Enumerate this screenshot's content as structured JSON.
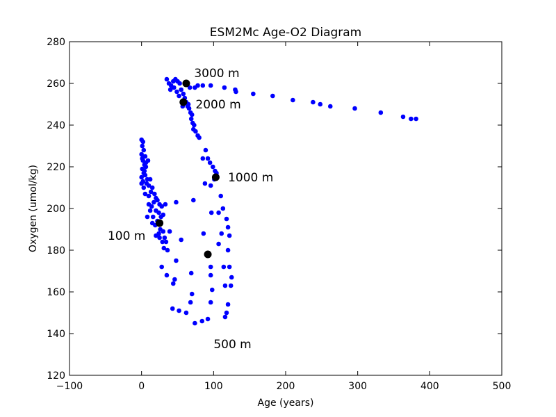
{
  "chart_data": {
    "type": "scatter",
    "title": "ESM2Mc Age-O2 Diagram",
    "xlabel": "Age (years)",
    "ylabel": "Oxygen (umol/kg)",
    "xlim": [
      -100,
      500
    ],
    "ylim": [
      120,
      280
    ],
    "xticks": [
      "−100",
      "0",
      "100",
      "200",
      "300",
      "400",
      "500"
    ],
    "yticks": [
      "120",
      "140",
      "160",
      "180",
      "200",
      "220",
      "240",
      "260",
      "280"
    ],
    "grid": false,
    "colors": {
      "points": "#0000ff",
      "markers": "#000000"
    },
    "series": [
      {
        "values": [
          [
            0,
            233
          ],
          [
            2,
            232
          ],
          [
            1,
            230
          ],
          [
            3,
            228
          ],
          [
            0,
            226
          ],
          [
            5,
            225
          ],
          [
            2,
            223
          ],
          [
            4,
            221
          ],
          [
            1,
            219
          ],
          [
            6,
            220
          ],
          [
            3,
            217
          ],
          [
            0,
            215
          ],
          [
            5,
            216
          ],
          [
            8,
            214
          ],
          [
            2,
            213
          ],
          [
            0,
            212
          ],
          [
            7,
            212
          ],
          [
            10,
            211
          ],
          [
            3,
            210
          ],
          [
            12,
            214
          ],
          [
            6,
            222
          ],
          [
            9,
            223
          ],
          [
            4,
            218
          ],
          [
            1,
            224
          ],
          [
            15,
            210
          ],
          [
            13,
            208
          ],
          [
            18,
            207
          ],
          [
            20,
            205
          ],
          [
            22,
            204
          ],
          [
            17,
            203
          ],
          [
            14,
            201
          ],
          [
            10,
            202
          ],
          [
            25,
            202
          ],
          [
            28,
            201
          ],
          [
            20,
            199
          ],
          [
            24,
            198
          ],
          [
            16,
            196
          ],
          [
            12,
            199
          ],
          [
            8,
            196
          ],
          [
            30,
            197
          ],
          [
            33,
            202
          ],
          [
            27,
            196
          ],
          [
            22,
            194
          ],
          [
            19,
            192
          ],
          [
            15,
            193
          ],
          [
            26,
            190
          ],
          [
            30,
            189
          ],
          [
            24,
            188
          ],
          [
            20,
            187
          ],
          [
            32,
            186
          ],
          [
            29,
            184
          ],
          [
            25,
            186
          ],
          [
            34,
            184
          ],
          [
            31,
            181
          ],
          [
            36,
            180
          ],
          [
            39,
            189
          ],
          [
            48,
            203
          ],
          [
            55,
            185
          ],
          [
            10,
            206
          ],
          [
            5,
            207
          ],
          [
            35,
            262
          ],
          [
            38,
            260
          ],
          [
            41,
            259
          ],
          [
            44,
            261
          ],
          [
            47,
            262
          ],
          [
            50,
            261
          ],
          [
            53,
            260
          ],
          [
            40,
            257
          ],
          [
            45,
            258
          ],
          [
            49,
            256
          ],
          [
            52,
            254
          ],
          [
            55,
            257
          ],
          [
            58,
            255
          ],
          [
            60,
            253
          ],
          [
            62,
            251
          ],
          [
            64,
            249
          ],
          [
            66,
            248
          ],
          [
            68,
            246
          ],
          [
            65,
            250
          ],
          [
            59,
            252
          ],
          [
            57,
            249
          ],
          [
            70,
            245
          ],
          [
            69,
            243
          ],
          [
            71,
            241
          ],
          [
            73,
            240
          ],
          [
            72,
            238
          ],
          [
            75,
            237
          ],
          [
            78,
            235
          ],
          [
            80,
            234
          ],
          [
            67,
            258
          ],
          [
            74,
            258
          ],
          [
            78,
            259
          ],
          [
            85,
            259
          ],
          [
            96,
            259
          ],
          [
            115,
            258
          ],
          [
            130,
            257
          ],
          [
            131,
            256
          ],
          [
            155,
            255
          ],
          [
            182,
            254
          ],
          [
            210,
            252
          ],
          [
            238,
            251
          ],
          [
            248,
            250
          ],
          [
            262,
            249
          ],
          [
            296,
            248
          ],
          [
            332,
            246
          ],
          [
            363,
            244
          ],
          [
            374,
            243
          ],
          [
            381,
            243
          ],
          [
            89,
            228
          ],
          [
            85,
            224
          ],
          [
            92,
            224
          ],
          [
            95,
            222
          ],
          [
            99,
            220
          ],
          [
            102,
            218
          ],
          [
            104,
            217
          ],
          [
            101,
            214
          ],
          [
            88,
            212
          ],
          [
            96,
            211
          ],
          [
            72,
            204
          ],
          [
            110,
            206
          ],
          [
            113,
            200
          ],
          [
            107,
            198
          ],
          [
            97,
            198
          ],
          [
            118,
            195
          ],
          [
            120,
            191
          ],
          [
            111,
            188
          ],
          [
            122,
            187
          ],
          [
            86,
            188
          ],
          [
            107,
            183
          ],
          [
            120,
            180
          ],
          [
            48,
            175
          ],
          [
            28,
            172
          ],
          [
            114,
            172
          ],
          [
            122,
            172
          ],
          [
            96,
            172
          ],
          [
            116,
            163
          ],
          [
            124,
            163
          ],
          [
            125,
            167
          ],
          [
            96,
            168
          ],
          [
            69,
            169
          ],
          [
            35,
            168
          ],
          [
            46,
            166
          ],
          [
            44,
            164
          ],
          [
            98,
            161
          ],
          [
            70,
            159
          ],
          [
            120,
            154
          ],
          [
            118,
            150
          ],
          [
            116,
            148
          ],
          [
            92,
            147
          ],
          [
            84,
            146
          ],
          [
            74,
            145
          ],
          [
            96,
            155
          ],
          [
            68,
            155
          ],
          [
            62,
            150
          ],
          [
            52,
            151
          ],
          [
            43,
            152
          ]
        ]
      },
      {
        "name": "depth-markers",
        "values": [
          {
            "x": 62,
            "y": 260,
            "label": "3000 m"
          },
          {
            "x": 58,
            "y": 251,
            "label": "2000 m"
          },
          {
            "x": 103,
            "y": 215,
            "label": "1000 m"
          },
          {
            "x": 25,
            "y": 193,
            "label": "100 m"
          },
          {
            "x": 92,
            "y": 178,
            "label": "500 m"
          }
        ]
      }
    ],
    "annotations": [
      {
        "text": "3000 m",
        "x": 73,
        "y": 265
      },
      {
        "text": "2000 m",
        "x": 75,
        "y": 250
      },
      {
        "text": "1000 m",
        "x": 120,
        "y": 215
      },
      {
        "text": "100 m",
        "x": -47,
        "y": 187
      },
      {
        "text": "500 m",
        "x": 100,
        "y": 135
      }
    ]
  }
}
